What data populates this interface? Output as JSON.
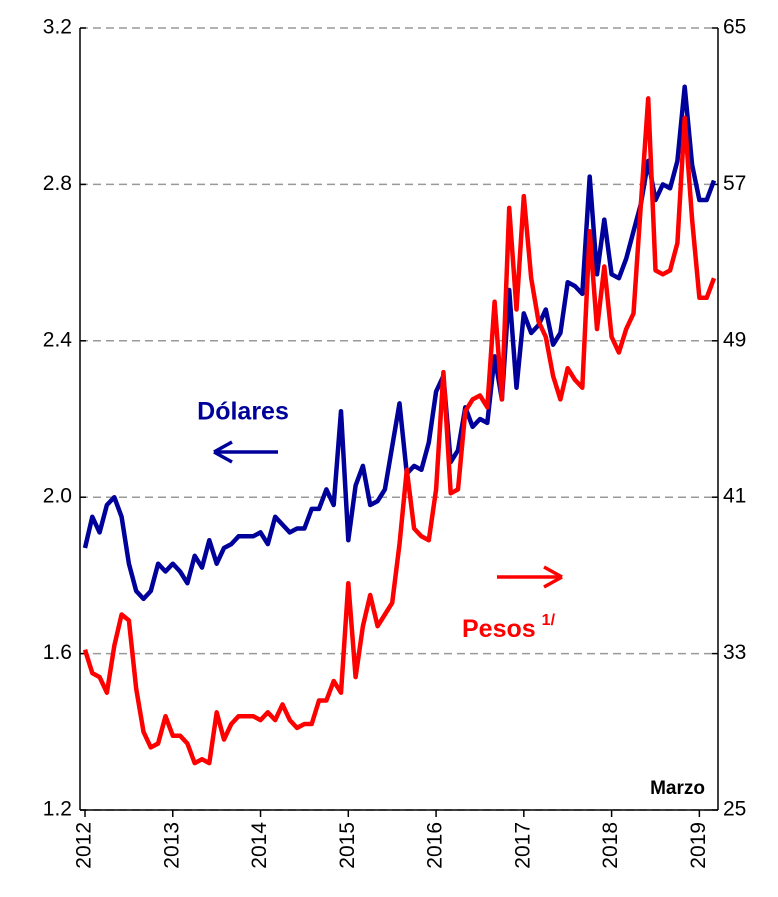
{
  "chart_data": {
    "type": "line",
    "categories": [
      "2012",
      null,
      null,
      null,
      null,
      null,
      null,
      null,
      null,
      null,
      null,
      null,
      "2013",
      null,
      null,
      null,
      null,
      null,
      null,
      null,
      null,
      null,
      null,
      null,
      "2014",
      null,
      null,
      null,
      null,
      null,
      null,
      null,
      null,
      null,
      null,
      null,
      "2015",
      null,
      null,
      null,
      null,
      null,
      null,
      null,
      null,
      null,
      null,
      null,
      "2016",
      null,
      null,
      null,
      null,
      null,
      null,
      null,
      null,
      null,
      null,
      null,
      "2017",
      null,
      null,
      null,
      null,
      null,
      null,
      null,
      null,
      null,
      null,
      null,
      "2018",
      null,
      null,
      null,
      null,
      null,
      null,
      null,
      null,
      null,
      null,
      null,
      "2019",
      null,
      null
    ],
    "series": [
      {
        "name": "Dólares",
        "color": "#00009a",
        "axis": "y",
        "values": [
          1.87,
          1.95,
          1.91,
          1.98,
          2.0,
          1.95,
          1.83,
          1.76,
          1.74,
          1.76,
          1.83,
          1.81,
          1.83,
          1.81,
          1.78,
          1.85,
          1.82,
          1.89,
          1.83,
          1.87,
          1.88,
          1.9,
          1.9,
          1.9,
          1.91,
          1.88,
          1.95,
          1.93,
          1.91,
          1.92,
          1.92,
          1.97,
          1.97,
          2.02,
          1.98,
          2.22,
          1.89,
          2.03,
          2.08,
          1.98,
          1.99,
          2.02,
          2.13,
          2.24,
          2.06,
          2.08,
          2.07,
          2.14,
          2.27,
          2.31,
          2.09,
          2.12,
          2.23,
          2.18,
          2.2,
          2.19,
          2.36,
          2.25,
          2.53,
          2.28,
          2.47,
          2.42,
          2.44,
          2.48,
          2.39,
          2.42,
          2.55,
          2.54,
          2.52,
          2.82,
          2.57,
          2.71,
          2.57,
          2.56,
          2.61,
          2.68,
          2.75,
          2.86,
          2.76,
          2.8,
          2.79,
          2.86,
          3.05,
          2.85,
          2.76,
          2.76,
          2.81
        ]
      },
      {
        "name": "Pesos",
        "footnote_mark": "1/",
        "color": "#ff0000",
        "axis": "y2",
        "values": [
          33.2,
          32.0,
          31.8,
          31.0,
          33.4,
          35.0,
          34.7,
          31.2,
          29.0,
          28.2,
          28.4,
          29.8,
          28.8,
          28.8,
          28.4,
          27.4,
          27.6,
          27.4,
          30.0,
          28.6,
          29.4,
          29.8,
          29.8,
          29.8,
          29.6,
          30.0,
          29.6,
          30.4,
          29.6,
          29.2,
          29.4,
          29.4,
          30.6,
          30.6,
          31.6,
          31.0,
          36.6,
          31.8,
          34.4,
          36.0,
          34.4,
          35.0,
          35.6,
          38.6,
          42.4,
          39.4,
          39.0,
          38.8,
          41.4,
          47.4,
          41.2,
          41.4,
          45.4,
          46.0,
          46.2,
          45.6,
          51.0,
          46.0,
          55.8,
          50.6,
          56.4,
          52.2,
          50.0,
          49.2,
          47.2,
          46.0,
          47.6,
          47.0,
          46.6,
          54.6,
          49.6,
          52.8,
          49.2,
          48.4,
          49.6,
          50.4,
          56.0,
          61.4,
          52.6,
          52.4,
          52.6,
          54.0,
          60.4,
          55.2,
          51.2,
          51.2,
          52.2
        ]
      }
    ],
    "ylim": [
      1.2,
      3.2
    ],
    "yticks": [
      1.2,
      1.6,
      {
        "value": 2.0,
        "label": "2.0"
      },
      2.4,
      2.8,
      3.2
    ],
    "y2lim": [
      25,
      65
    ],
    "y2ticks": [
      25,
      33,
      41,
      49,
      57,
      65
    ],
    "grid": true,
    "annotations": [
      {
        "text": "Marzo"
      }
    ]
  }
}
